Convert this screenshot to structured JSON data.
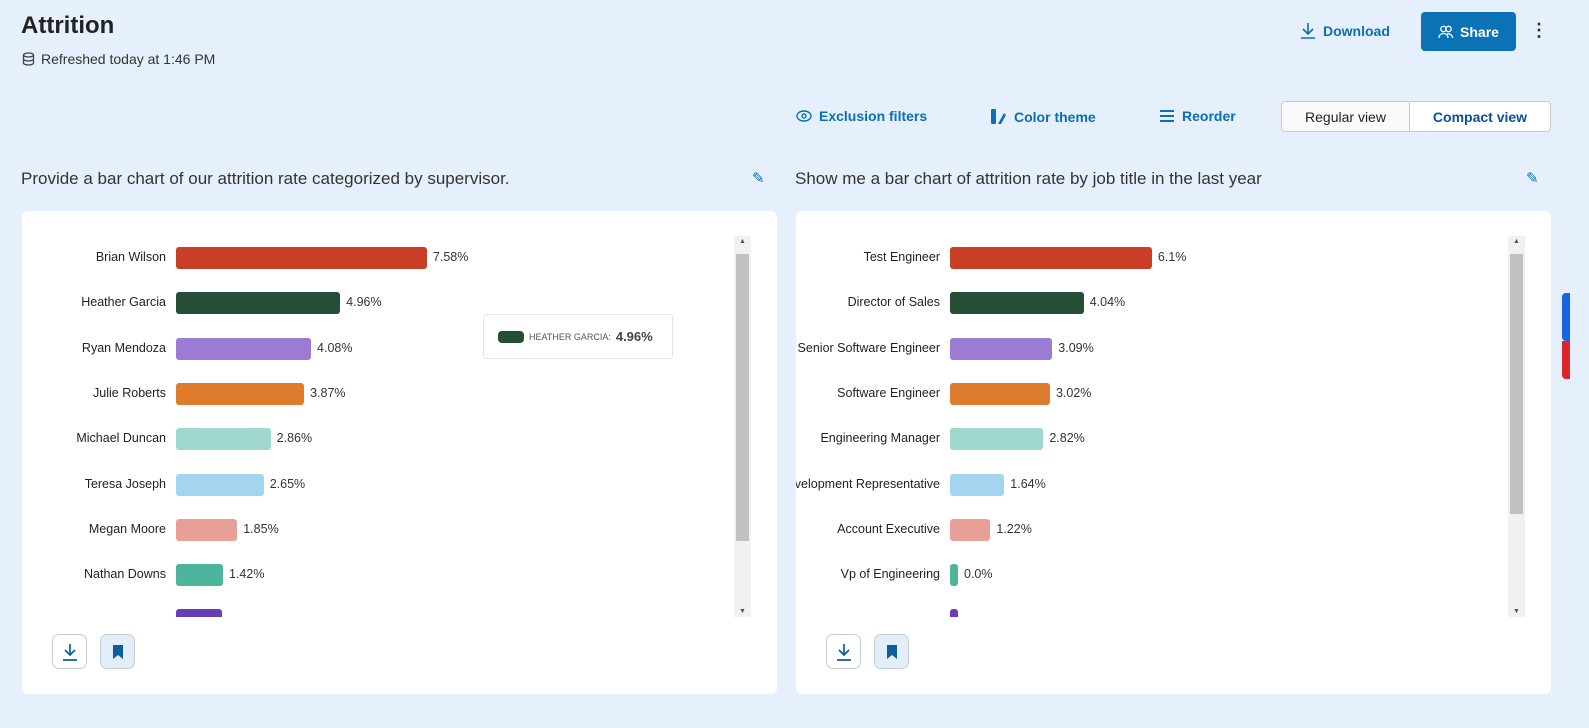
{
  "header": {
    "title": "Attrition",
    "refreshed": "Refreshed today at 1:46 PM",
    "download": "Download",
    "share": "Share"
  },
  "toolbar": {
    "exclusion_filters": "Exclusion filters",
    "color_theme": "Color theme",
    "reorder": "Reorder",
    "regular_view": "Regular view",
    "compact_view": "Compact view"
  },
  "colors": {
    "accent": "#0b72b5",
    "background": "#e6f0fc"
  },
  "charts": [
    {
      "question": "Provide a bar chart of our attrition rate categorized by supervisor.",
      "tooltip": {
        "label": "HEATHER GARCIA:",
        "value": "4.96%",
        "color": "#264d36"
      }
    },
    {
      "question": "Show me a bar chart of attrition rate by job title in the last year"
    }
  ],
  "chart_data": [
    {
      "type": "bar",
      "orientation": "horizontal",
      "unit": "%",
      "categories": [
        "Brian Wilson",
        "Heather Garcia",
        "Ryan Mendoza",
        "Julie Roberts",
        "Michael Duncan",
        "Teresa Joseph",
        "Megan Moore",
        "Nathan Downs",
        ""
      ],
      "values": [
        7.58,
        4.96,
        4.08,
        3.87,
        2.86,
        2.65,
        1.85,
        1.42,
        1.4
      ],
      "labels": [
        "7.58%",
        "4.96%",
        "4.08%",
        "3.87%",
        "2.86%",
        "2.65%",
        "1.85%",
        "1.42%",
        ""
      ],
      "colors": [
        "#c93f26",
        "#264d36",
        "#9b7bd3",
        "#df7b2c",
        "#9fd8cc",
        "#a3d4f0",
        "#e8a096",
        "#4db59c",
        "#6a3cb5"
      ]
    },
    {
      "type": "bar",
      "orientation": "horizontal",
      "unit": "%",
      "categories": [
        "Test Engineer",
        "Director of Sales",
        "Senior Software Engineer",
        "Software Engineer",
        "Engineering Manager",
        "Sales Development Representative",
        "Account Executive",
        "Vp of Engineering",
        ""
      ],
      "values": [
        6.1,
        4.04,
        3.09,
        3.02,
        2.82,
        1.64,
        1.22,
        0.0,
        0.0
      ],
      "labels": [
        "6.1%",
        "4.04%",
        "3.09%",
        "3.02%",
        "2.82%",
        "1.64%",
        "1.22%",
        "0.0%",
        ""
      ],
      "colors": [
        "#c93f26",
        "#264d36",
        "#9b7bd3",
        "#df7b2c",
        "#9fd8cc",
        "#a3d4f0",
        "#e8a096",
        "#4db59c",
        "#6a3cb5"
      ]
    }
  ]
}
